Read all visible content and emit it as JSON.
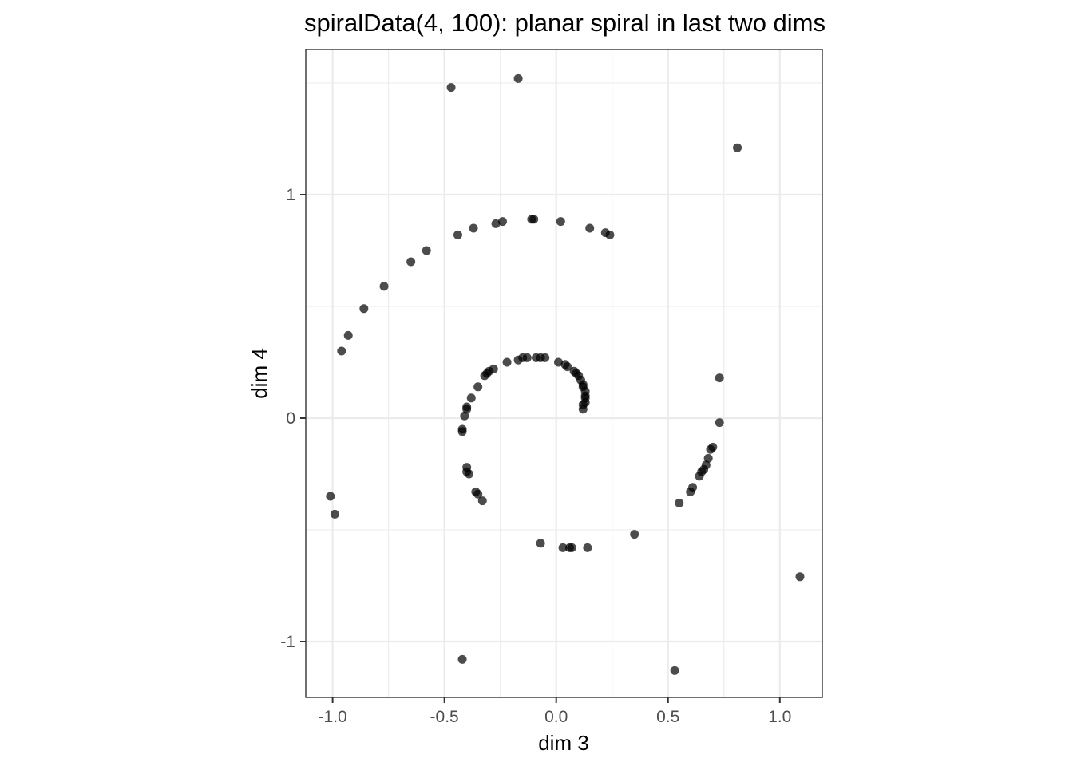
{
  "chart_data": {
    "type": "scatter",
    "title": "spiralData(4, 100): planar spiral in last two dims",
    "xlabel": "dim 3",
    "ylabel": "dim 4",
    "xlim": [
      -1.12,
      1.19
    ],
    "ylim": [
      -1.25,
      1.65
    ],
    "xticks": [
      -1.0,
      -0.5,
      0.0,
      0.5,
      1.0
    ],
    "xtick_labels": [
      "-1.0",
      "-0.5",
      "0.0",
      "0.5",
      "1.0"
    ],
    "yticks": [
      -1,
      0,
      1
    ],
    "ytick_labels": [
      "-1",
      "0",
      "1"
    ],
    "grid": true,
    "legend": "none",
    "point_color": "#000000",
    "points": [
      {
        "x": -0.47,
        "y": 1.48
      },
      {
        "x": -0.17,
        "y": 1.52
      },
      {
        "x": 0.81,
        "y": 1.21
      },
      {
        "x": -0.44,
        "y": 0.82
      },
      {
        "x": -0.37,
        "y": 0.85
      },
      {
        "x": -0.27,
        "y": 0.87
      },
      {
        "x": -0.24,
        "y": 0.88
      },
      {
        "x": -0.11,
        "y": 0.89
      },
      {
        "x": -0.1,
        "y": 0.89
      },
      {
        "x": 0.02,
        "y": 0.88
      },
      {
        "x": 0.15,
        "y": 0.85
      },
      {
        "x": 0.22,
        "y": 0.83
      },
      {
        "x": 0.24,
        "y": 0.82
      },
      {
        "x": -0.58,
        "y": 0.75
      },
      {
        "x": -0.65,
        "y": 0.7
      },
      {
        "x": -0.77,
        "y": 0.59
      },
      {
        "x": -0.86,
        "y": 0.49
      },
      {
        "x": -0.93,
        "y": 0.37
      },
      {
        "x": -0.96,
        "y": 0.3
      },
      {
        "x": -1.01,
        "y": -0.35
      },
      {
        "x": -0.99,
        "y": -0.43
      },
      {
        "x": -0.42,
        "y": -1.08
      },
      {
        "x": 0.53,
        "y": -1.13
      },
      {
        "x": 1.09,
        "y": -0.71
      },
      {
        "x": 0.35,
        "y": -0.52
      },
      {
        "x": 0.14,
        "y": -0.58
      },
      {
        "x": 0.07,
        "y": -0.58
      },
      {
        "x": 0.06,
        "y": -0.58
      },
      {
        "x": 0.03,
        "y": -0.58
      },
      {
        "x": -0.07,
        "y": -0.56
      },
      {
        "x": 0.73,
        "y": 0.18
      },
      {
        "x": 0.73,
        "y": -0.02
      },
      {
        "x": 0.7,
        "y": -0.13
      },
      {
        "x": 0.69,
        "y": -0.14
      },
      {
        "x": 0.68,
        "y": -0.18
      },
      {
        "x": 0.67,
        "y": -0.21
      },
      {
        "x": 0.66,
        "y": -0.23
      },
      {
        "x": 0.65,
        "y": -0.24
      },
      {
        "x": 0.64,
        "y": -0.26
      },
      {
        "x": 0.61,
        "y": -0.31
      },
      {
        "x": 0.6,
        "y": -0.33
      },
      {
        "x": 0.55,
        "y": -0.38
      },
      {
        "x": -0.42,
        "y": -0.05
      },
      {
        "x": -0.42,
        "y": -0.06
      },
      {
        "x": -0.41,
        "y": 0.01
      },
      {
        "x": -0.4,
        "y": 0.04
      },
      {
        "x": -0.4,
        "y": 0.05
      },
      {
        "x": -0.38,
        "y": 0.09
      },
      {
        "x": -0.35,
        "y": 0.14
      },
      {
        "x": -0.32,
        "y": 0.19
      },
      {
        "x": -0.31,
        "y": 0.2
      },
      {
        "x": -0.3,
        "y": 0.21
      },
      {
        "x": -0.28,
        "y": 0.22
      },
      {
        "x": -0.22,
        "y": 0.25
      },
      {
        "x": -0.17,
        "y": 0.26
      },
      {
        "x": -0.15,
        "y": 0.27
      },
      {
        "x": -0.13,
        "y": 0.27
      },
      {
        "x": -0.09,
        "y": 0.27
      },
      {
        "x": -0.07,
        "y": 0.27
      },
      {
        "x": -0.05,
        "y": 0.27
      },
      {
        "x": 0.01,
        "y": 0.25
      },
      {
        "x": 0.04,
        "y": 0.24
      },
      {
        "x": 0.05,
        "y": 0.23
      },
      {
        "x": 0.08,
        "y": 0.21
      },
      {
        "x": 0.09,
        "y": 0.2
      },
      {
        "x": 0.1,
        "y": 0.19
      },
      {
        "x": 0.11,
        "y": 0.17
      },
      {
        "x": 0.12,
        "y": 0.15
      },
      {
        "x": 0.12,
        "y": 0.14
      },
      {
        "x": 0.13,
        "y": 0.12
      },
      {
        "x": 0.13,
        "y": 0.1
      },
      {
        "x": 0.13,
        "y": 0.09
      },
      {
        "x": 0.13,
        "y": 0.07
      },
      {
        "x": 0.12,
        "y": 0.06
      },
      {
        "x": 0.12,
        "y": 0.04
      },
      {
        "x": -0.4,
        "y": -0.22
      },
      {
        "x": -0.4,
        "y": -0.24
      },
      {
        "x": -0.39,
        "y": -0.25
      },
      {
        "x": -0.36,
        "y": -0.33
      },
      {
        "x": -0.35,
        "y": -0.34
      },
      {
        "x": -0.33,
        "y": -0.37
      }
    ]
  }
}
